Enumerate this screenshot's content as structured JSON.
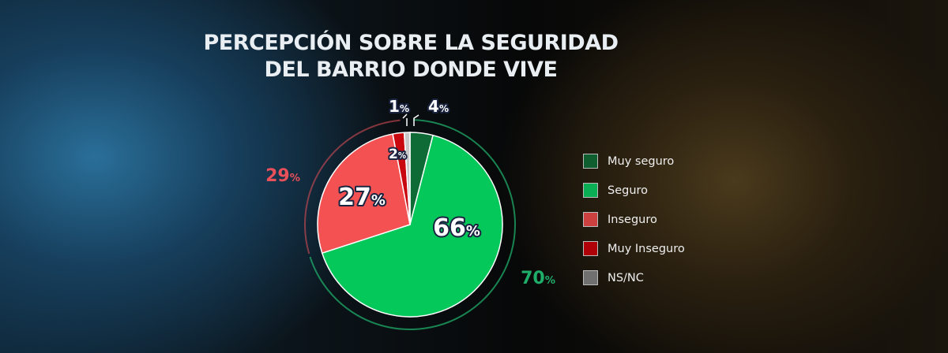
{
  "chart_data": {
    "type": "pie",
    "title": "PERCEPCIÓN SOBRE LA SEGURIDAD\nDEL BARRIO DONDE VIVE",
    "title_lines": [
      "PERCEPCIÓN SOBRE LA SEGURIDAD",
      "DEL BARRIO DONDE VIVE"
    ],
    "slices": [
      {
        "name": "Muy seguro",
        "value": 4,
        "label": "4",
        "color": "#0e6b35"
      },
      {
        "name": "Seguro",
        "value": 66,
        "label": "66",
        "color": "#05c85a"
      },
      {
        "name": "Inseguro",
        "value": 27,
        "label": "27",
        "color": "#f45252"
      },
      {
        "name": "Muy Inseguro",
        "value": 2,
        "label": "2",
        "color": "#c8080e"
      },
      {
        "name": "NS/NC",
        "value": 1,
        "label": "1",
        "color": "#c8c8c8"
      }
    ],
    "groups": [
      {
        "label": "70",
        "value": 70,
        "color": "#1fae6a"
      },
      {
        "label": "29",
        "value": 29,
        "color": "#e8505a"
      }
    ],
    "percent_sign": "%",
    "legend": {
      "position": "right",
      "swatch_colors": [
        "#0e5e30",
        "#0aae55",
        "#cc4040",
        "#b00008",
        "#707070"
      ]
    }
  }
}
